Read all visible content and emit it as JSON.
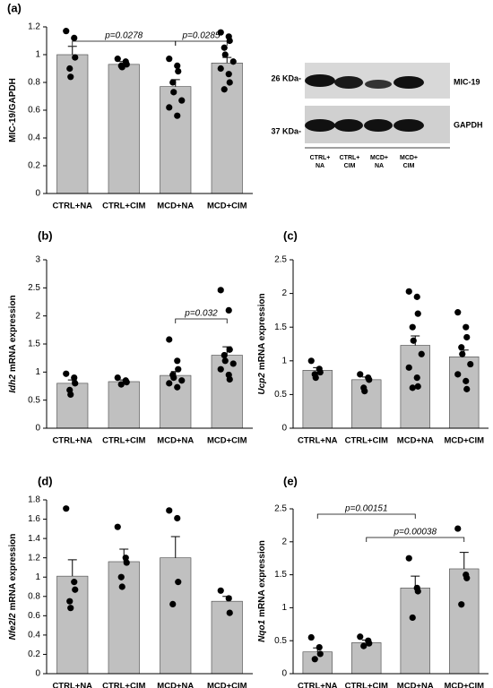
{
  "blot": {
    "marker_top": "26 KDa-",
    "protein_top": "MIC-19",
    "marker_bottom": "37 KDa-",
    "protein_bottom": "GAPDH",
    "lanes": [
      [
        "CTRL+",
        "NA"
      ],
      [
        "CTRL+",
        "CIM"
      ],
      [
        "MCD+",
        "NA"
      ],
      [
        "MCD+",
        "CIM"
      ]
    ]
  },
  "chart_data": [
    {
      "type": "bar",
      "panel": "(a)",
      "ylabel": "MIC-19/GAPDH",
      "color": "#c0c0c0",
      "categories": [
        "CTRL+NA",
        "CTRL+CIM",
        "MCD+NA",
        "MCD+CIM"
      ],
      "values": [
        1.0,
        0.93,
        0.77,
        0.94
      ],
      "errors": [
        0.06,
        0.02,
        0.05,
        0.04
      ],
      "points": [
        [
          1.17,
          1.12,
          0.98,
          0.9,
          0.84
        ],
        [
          0.97,
          0.95,
          0.93,
          0.92,
          0.91
        ],
        [
          0.97,
          0.92,
          0.88,
          0.8,
          0.73,
          0.67,
          0.62,
          0.56
        ],
        [
          1.16,
          1.13,
          1.1,
          1.05,
          1.0,
          0.95,
          0.9,
          0.86,
          0.8,
          0.75
        ]
      ],
      "ylim": [
        0,
        1.2
      ],
      "yticks": [
        0,
        0.2,
        0.4,
        0.6,
        0.8,
        1,
        1.2
      ],
      "annotations": [
        {
          "text": "p=0.0278",
          "from": 0,
          "to": 2
        },
        {
          "text": "p=0.0285",
          "from": 2,
          "to": 3
        }
      ]
    },
    {
      "type": "bar",
      "panel": "(b)",
      "ylabel_gene": "Idh2",
      "ylabel": "mRNA expression",
      "color": "#c0c0c0",
      "categories": [
        "CTRL+NA",
        "CTRL+CIM",
        "MCD+NA",
        "MCD+CIM"
      ],
      "values": [
        0.8,
        0.83,
        0.94,
        1.3
      ],
      "errors": [
        0.06,
        0.03,
        0.07,
        0.15
      ],
      "points": [
        [
          0.97,
          0.9,
          0.8,
          0.68,
          0.6
        ],
        [
          0.9,
          0.85,
          0.82,
          0.78
        ],
        [
          1.58,
          1.2,
          1.05,
          0.95,
          0.9,
          0.85,
          0.8,
          0.73
        ],
        [
          2.46,
          2.1,
          1.4,
          1.3,
          1.2,
          1.15,
          1.05,
          0.95,
          0.87
        ]
      ],
      "ylim": [
        0,
        3
      ],
      "yticks": [
        0,
        0.5,
        1,
        1.5,
        2,
        2.5,
        3
      ],
      "annotations": [
        {
          "text": "p=0.032",
          "from": 2,
          "to": 3
        }
      ]
    },
    {
      "type": "bar",
      "panel": "(c)",
      "ylabel_gene": "Ucp2",
      "ylabel": "mRNA expression",
      "color": "#c0c0c0",
      "categories": [
        "CTRL+NA",
        "CTRL+CIM",
        "MCD+NA",
        "MCD+CIM"
      ],
      "values": [
        0.86,
        0.72,
        1.23,
        1.06
      ],
      "errors": [
        0.04,
        0.04,
        0.14,
        0.1
      ],
      "points": [
        [
          1.0,
          0.88,
          0.83,
          0.8,
          0.75
        ],
        [
          0.8,
          0.75,
          0.72,
          0.6,
          0.55
        ],
        [
          2.03,
          1.95,
          1.7,
          1.5,
          1.3,
          1.1,
          0.9,
          0.75,
          0.62,
          0.6
        ],
        [
          1.72,
          1.5,
          1.35,
          1.2,
          1.1,
          0.95,
          0.8,
          0.7,
          0.58
        ]
      ],
      "ylim": [
        0,
        2.5
      ],
      "yticks": [
        0,
        0.5,
        1,
        1.5,
        2,
        2.5
      ]
    },
    {
      "type": "bar",
      "panel": "(d)",
      "ylabel_gene": "Nfe2l2",
      "ylabel": "mRNA expression",
      "color": "#c0c0c0",
      "categories": [
        "CTRL+NA",
        "CTRL+CIM",
        "MCD+NA",
        "MCD+CIM"
      ],
      "values": [
        1.01,
        1.16,
        1.2,
        0.75
      ],
      "errors": [
        0.17,
        0.13,
        0.22,
        0.05
      ],
      "points": [
        [
          1.71,
          0.95,
          0.87,
          0.75,
          0.68
        ],
        [
          1.52,
          1.2,
          1.15,
          1.0,
          0.9
        ],
        [
          1.69,
          1.61,
          0.95,
          0.72
        ],
        [
          0.86,
          0.78,
          0.63
        ]
      ],
      "ylim": [
        0,
        1.8
      ],
      "yticks": [
        0,
        0.2,
        0.4,
        0.6,
        0.8,
        1,
        1.2,
        1.4,
        1.6,
        1.8
      ]
    },
    {
      "type": "bar",
      "panel": "(e)",
      "ylabel_gene": "Nqo1",
      "ylabel": "mRNA expression",
      "color": "#c0c0c0",
      "categories": [
        "CTRL+NA",
        "CTRL+CIM",
        "MCD+NA",
        "MCD+CIM"
      ],
      "values": [
        0.33,
        0.47,
        1.3,
        1.59
      ],
      "errors": [
        0.06,
        0.04,
        0.18,
        0.25
      ],
      "points": [
        [
          0.55,
          0.4,
          0.3,
          0.22
        ],
        [
          0.56,
          0.5,
          0.46,
          0.42
        ],
        [
          1.75,
          1.3,
          1.25,
          0.85
        ],
        [
          2.2,
          1.5,
          1.45,
          1.05
        ]
      ],
      "ylim": [
        0,
        2.5
      ],
      "yticks": [
        0,
        0.5,
        1,
        1.5,
        2,
        2.5
      ],
      "annotations": [
        {
          "text": "p=0.00151",
          "from": 0,
          "to": 2
        },
        {
          "text": "p=0.00038",
          "from": 1,
          "to": 3
        }
      ]
    }
  ]
}
